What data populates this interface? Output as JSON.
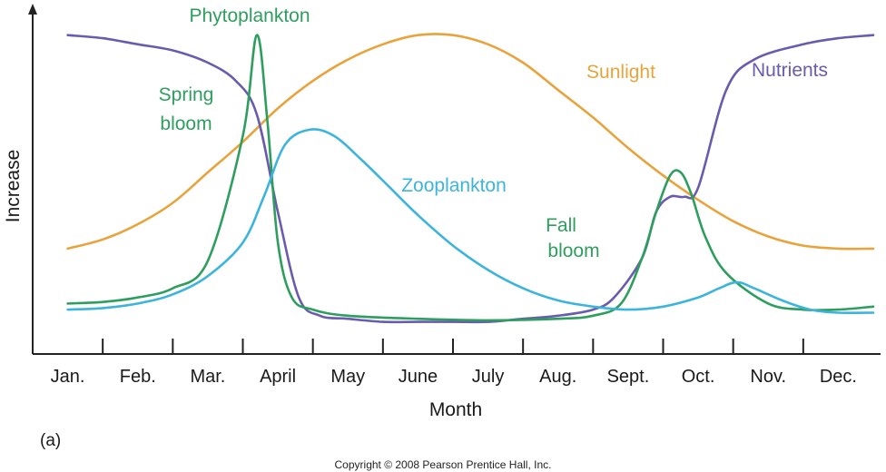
{
  "chart_data": {
    "type": "line",
    "title": "",
    "xlabel": "Month",
    "ylabel": "Increase",
    "ylim": [
      0,
      100
    ],
    "categories": [
      "Jan.",
      "Feb.",
      "Mar.",
      "April",
      "May",
      "June",
      "July",
      "Aug.",
      "Sept.",
      "Oct.",
      "Nov.",
      "Dec."
    ],
    "grid": false,
    "series": [
      {
        "name": "Sunlight",
        "color": "#E8A33C",
        "x": [
          0.0,
          0.5,
          1.0,
          1.5,
          2.0,
          2.5,
          3.0,
          3.5,
          4.0,
          4.5,
          5.0,
          5.5,
          6.0,
          6.5,
          7.0,
          7.5,
          8.0,
          8.5,
          9.0,
          9.5,
          10.0,
          10.5,
          11.0,
          11.5
        ],
        "values": [
          28,
          31,
          36,
          43,
          53,
          63,
          74,
          83,
          90,
          95,
          98,
          98,
          95,
          89,
          80,
          71,
          61,
          52,
          44,
          37,
          32,
          29,
          28,
          28
        ]
      },
      {
        "name": "Nutrients",
        "color": "#6A5BAE",
        "x": [
          0.0,
          0.5,
          1.0,
          1.5,
          2.0,
          2.4,
          2.7,
          3.0,
          3.3,
          3.6,
          4.0,
          4.5,
          5.0,
          5.5,
          6.0,
          6.5,
          7.0,
          7.5,
          7.8,
          8.2,
          8.4,
          8.6,
          8.8,
          9.0,
          9.4,
          9.8,
          10.5,
          11.0,
          11.5
        ],
        "values": [
          98,
          97,
          95,
          93,
          89,
          83,
          72,
          40,
          12,
          6,
          5,
          4,
          4,
          4,
          4,
          5,
          6,
          8,
          12,
          25,
          40,
          45,
          45,
          48,
          80,
          90,
          95,
          97,
          98
        ]
      },
      {
        "name": "Phytoplankton",
        "color": "#2E9E5E",
        "x": [
          0.0,
          0.5,
          1.0,
          1.5,
          2.0,
          2.5,
          2.7,
          2.85,
          3.0,
          3.2,
          3.5,
          4.0,
          5.0,
          6.0,
          7.0,
          7.5,
          7.9,
          8.2,
          8.4,
          8.6,
          8.75,
          8.9,
          9.1,
          9.4,
          10.0,
          10.5,
          11.0,
          11.5
        ],
        "values": [
          10,
          10.5,
          12,
          15,
          24,
          65,
          98,
          70,
          30,
          12,
          8,
          6,
          5,
          4.5,
          5,
          6,
          10,
          25,
          40,
          52,
          53,
          46,
          32,
          20,
          10,
          8,
          8,
          9
        ]
      },
      {
        "name": "Zooplankton",
        "color": "#3DB4DC",
        "x": [
          0.0,
          0.5,
          1.0,
          1.5,
          2.0,
          2.5,
          2.8,
          3.1,
          3.45,
          3.8,
          4.2,
          4.6,
          5.0,
          5.5,
          6.0,
          6.5,
          7.0,
          7.5,
          8.0,
          8.5,
          9.0,
          9.3,
          9.55,
          9.8,
          10.2,
          10.6,
          11.0,
          11.5
        ],
        "values": [
          8,
          8.5,
          10,
          13,
          19,
          30,
          45,
          62,
          67,
          65,
          57,
          48,
          39,
          29,
          21,
          15,
          11,
          9,
          8,
          9,
          12,
          15,
          17,
          15,
          11,
          8,
          7,
          7
        ]
      }
    ],
    "annotations": [
      {
        "text": "Phytoplankton"
      },
      {
        "text": "Spring"
      },
      {
        "text": "bloom"
      },
      {
        "text": "Sunlight"
      },
      {
        "text": "Nutrients"
      },
      {
        "text": "Zooplankton"
      },
      {
        "text": "Fall"
      },
      {
        "text": "bloom"
      }
    ],
    "panel_label": "(a)",
    "copyright": "Copyright © 2008 Pearson Prentice Hall, Inc."
  }
}
